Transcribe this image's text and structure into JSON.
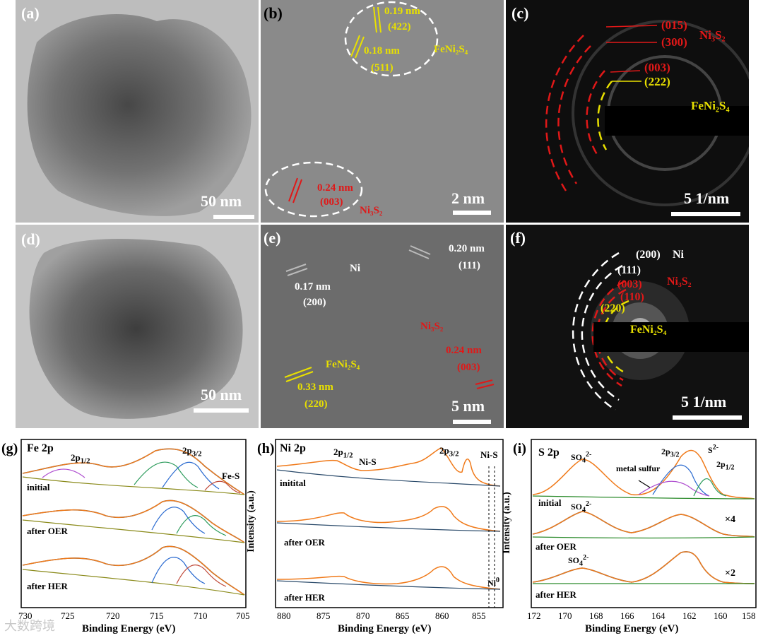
{
  "panels": {
    "a": {
      "label": "(a)",
      "scale": "50 nm"
    },
    "b": {
      "label": "(b)",
      "scale": "2 nm",
      "annotations": {
        "d422": "0.19 nm",
        "h422": "(422)",
        "d511": "0.18 nm",
        "h511": "(511)",
        "phase1": "FeNi₂S₄",
        "d003": "0.24 nm",
        "h003": "(003)",
        "phase2": "Ni₃S₂"
      }
    },
    "c": {
      "label": "(c)",
      "scale": "5 1/nm",
      "annotations": {
        "h015": "(015)",
        "h300": "(300)",
        "phase1": "Ni₃S₂",
        "h003": "(003)",
        "h222": "(222)",
        "phase2": "FeNi₂S₄"
      }
    },
    "d": {
      "label": "(d)",
      "scale": "50 nm"
    },
    "e": {
      "label": "(e)",
      "scale": "5 nm",
      "annotations": {
        "ni": "Ni",
        "d200": "0.17 nm",
        "h200": "(200)",
        "d111": "0.20 nm",
        "h111": "(111)",
        "phase1": "Ni₃S₂",
        "d003": "0.24 nm",
        "h003": "(003)",
        "phase2": "FeNi₂S₄",
        "d220": "0.33 nm",
        "h220": "(220)"
      }
    },
    "f": {
      "label": "(f)",
      "scale": "5 1/nm",
      "annotations": {
        "h200": "(200)",
        "ni": "Ni",
        "h111": "(111)",
        "h003": "(003)",
        "phase1": "Ni₃S₂",
        "h110": "(110)",
        "h220": "(220)",
        "phase2": "FeNi₂S₄"
      }
    }
  },
  "xps": {
    "ylabel": "Intensity (a.u.)",
    "xlabel": "Binding Energy (eV)",
    "g": {
      "label": "(g)",
      "title": "Fe 2p",
      "peaks": [
        "2p1/2",
        "2p3/2",
        "Fe-S"
      ],
      "traces": [
        "initial",
        "after OER",
        "after HER"
      ],
      "ticks": [
        "730",
        "725",
        "720",
        "715",
        "710",
        "705"
      ]
    },
    "h": {
      "label": "(h)",
      "title": "Ni 2p",
      "peaks": [
        "2p1/2",
        "Ni-S",
        "2p3/2",
        "Ni-S",
        "Ni0"
      ],
      "traces": [
        "initital",
        "after OER",
        "after HER"
      ],
      "ticks": [
        "880",
        "875",
        "870",
        "865",
        "860",
        "855"
      ]
    },
    "i": {
      "label": "(i)",
      "title": "S 2p",
      "peaks": [
        "SO4 2-",
        "metal sulfur",
        "2p3/2",
        "S2-",
        "2p1/2",
        "SO4 2-",
        "SO4 2-"
      ],
      "traces": [
        "initial",
        "after OER",
        "after HER"
      ],
      "multipliers": [
        "×4",
        "×2"
      ],
      "ticks": [
        "172",
        "170",
        "168",
        "166",
        "164",
        "162",
        "160",
        "158"
      ]
    }
  },
  "chart_data": [
    {
      "type": "line",
      "title": "Fe 2p",
      "xlabel": "Binding Energy (eV)",
      "ylabel": "Intensity (a.u.)",
      "xlim": [
        730,
        705
      ],
      "series": [
        {
          "name": "initial"
        },
        {
          "name": "after OER"
        },
        {
          "name": "after HER"
        }
      ]
    },
    {
      "type": "line",
      "title": "Ni 2p",
      "xlabel": "Binding Energy (eV)",
      "ylabel": "Intensity (a.u.)",
      "xlim": [
        883,
        850
      ],
      "series": [
        {
          "name": "initital"
        },
        {
          "name": "after OER"
        },
        {
          "name": "after HER"
        }
      ]
    },
    {
      "type": "line",
      "title": "S 2p",
      "xlabel": "Binding Energy (eV)",
      "ylabel": "Intensity (a.u.)",
      "xlim": [
        172,
        158
      ],
      "series": [
        {
          "name": "initial"
        },
        {
          "name": "after OER"
        },
        {
          "name": "after HER"
        }
      ]
    }
  ],
  "watermark": "大数跨境"
}
